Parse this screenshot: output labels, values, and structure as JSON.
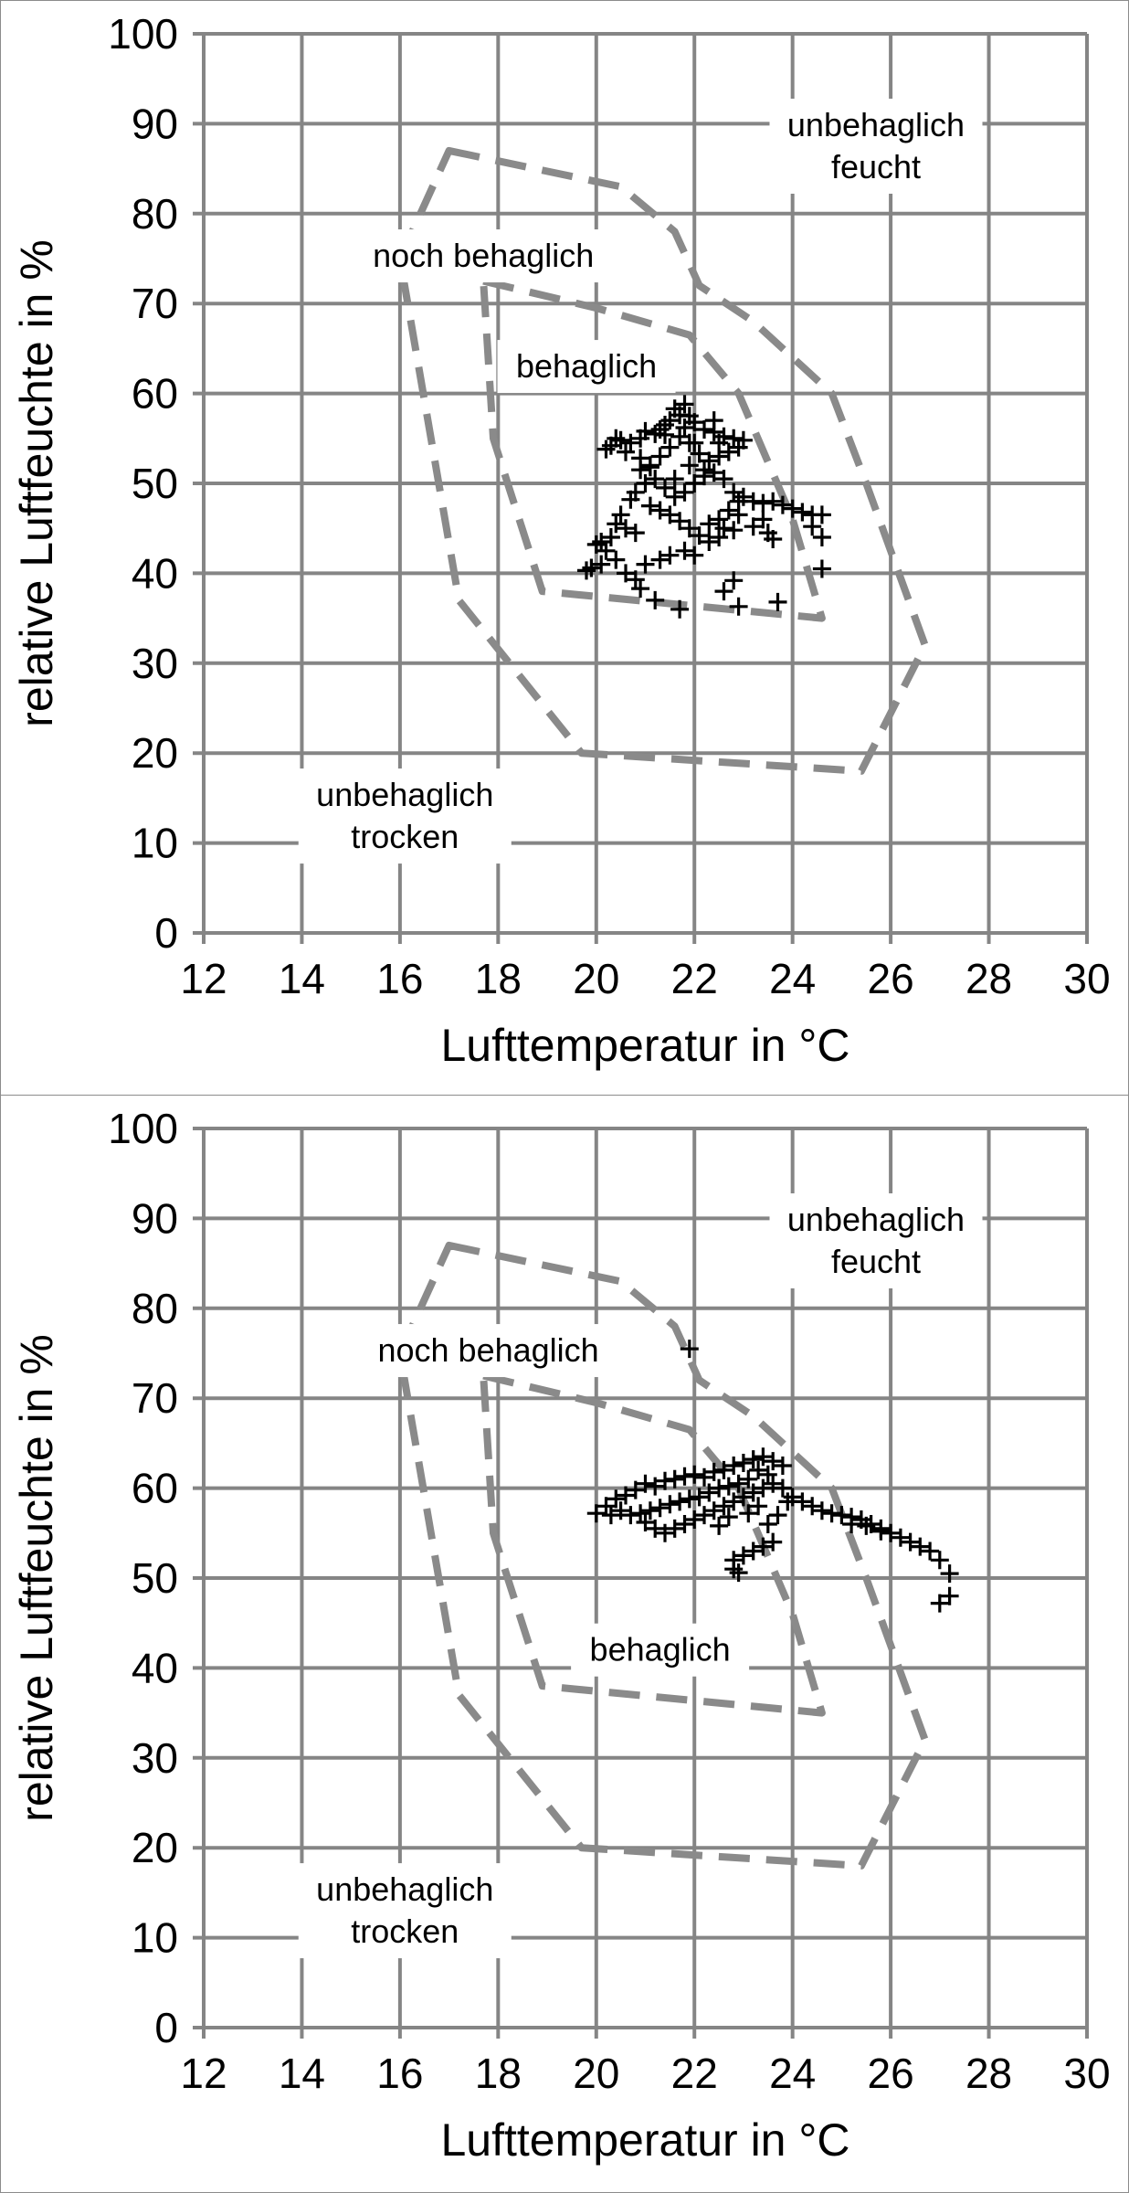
{
  "chart_data": [
    {
      "type": "scatter",
      "xlabel": "Lufttemperatur in °C",
      "ylabel": "relative Luftfeuchte in %",
      "xlim": [
        12,
        30
      ],
      "ylim": [
        0,
        100
      ],
      "xticks": [
        "12",
        "14",
        "16",
        "18",
        "20",
        "22",
        "24",
        "26",
        "28",
        "30"
      ],
      "yticks": [
        "0",
        "10",
        "20",
        "30",
        "40",
        "50",
        "60",
        "70",
        "80",
        "90",
        "100"
      ],
      "grid": true,
      "marker": "plus",
      "zones": [
        {
          "label": "noch behaglich",
          "style": "dashed",
          "color": "#8a8a8a",
          "points": [
            [
              17.0,
              87
            ],
            [
              20.5,
              83
            ],
            [
              21.6,
              78
            ],
            [
              22.1,
              72
            ],
            [
              23.2,
              68
            ],
            [
              24.8,
              60
            ],
            [
              25.5,
              50
            ],
            [
              26.7,
              32
            ],
            [
              25.4,
              18
            ],
            [
              19.7,
              20
            ],
            [
              17.2,
              37
            ],
            [
              16.0,
              75
            ]
          ]
        },
        {
          "label": "behaglich",
          "style": "dashed",
          "color": "#8a8a8a",
          "points": [
            [
              17.7,
              72.5
            ],
            [
              20.0,
              69.5
            ],
            [
              21.9,
              66.5
            ],
            [
              22.9,
              60
            ],
            [
              24.0,
              46
            ],
            [
              24.6,
              35
            ],
            [
              18.9,
              38
            ],
            [
              17.9,
              55
            ],
            [
              17.7,
              72.5
            ]
          ]
        }
      ],
      "annotations": [
        {
          "text": "unbehaglich feucht"
        },
        {
          "text": "noch behaglich"
        },
        {
          "text": "behaglich"
        },
        {
          "text": "unbehaglich trocken"
        }
      ],
      "points": [
        [
          21.6,
          58.3
        ],
        [
          21.7,
          57.6
        ],
        [
          21.8,
          58.8
        ],
        [
          21.5,
          57.0
        ],
        [
          21.4,
          56.5
        ],
        [
          21.9,
          57.5
        ],
        [
          22.0,
          56.8
        ],
        [
          21.3,
          56.0
        ],
        [
          21.2,
          55.5
        ],
        [
          21.0,
          55.8
        ],
        [
          20.9,
          55.0
        ],
        [
          20.7,
          54.5
        ],
        [
          20.5,
          54.8
        ],
        [
          20.3,
          54.2
        ],
        [
          20.2,
          53.8
        ],
        [
          20.4,
          55.0
        ],
        [
          22.2,
          56.0
        ],
        [
          22.4,
          55.7
        ],
        [
          22.6,
          55.2
        ],
        [
          22.8,
          55.0
        ],
        [
          23.0,
          54.8
        ],
        [
          22.9,
          54.0
        ],
        [
          22.7,
          53.5
        ],
        [
          22.5,
          53.0
        ],
        [
          22.3,
          52.5
        ],
        [
          22.1,
          53.3
        ],
        [
          21.9,
          54.5
        ],
        [
          21.7,
          55.2
        ],
        [
          21.5,
          54.0
        ],
        [
          21.3,
          53.0
        ],
        [
          21.1,
          52.0
        ],
        [
          20.9,
          51.5
        ],
        [
          21.2,
          50.5
        ],
        [
          21.4,
          49.5
        ],
        [
          21.6,
          48.5
        ],
        [
          21.8,
          49.0
        ],
        [
          22.0,
          50.0
        ],
        [
          22.2,
          50.8
        ],
        [
          22.4,
          51.2
        ],
        [
          22.6,
          50.5
        ],
        [
          22.8,
          49.0
        ],
        [
          22.9,
          48.0
        ],
        [
          22.7,
          47.0
        ],
        [
          22.5,
          46.0
        ],
        [
          22.3,
          45.5
        ],
        [
          22.6,
          45.0
        ],
        [
          22.8,
          44.8
        ],
        [
          22.9,
          46.5
        ],
        [
          21.0,
          50.0
        ],
        [
          20.8,
          49.0
        ],
        [
          20.7,
          48.2
        ],
        [
          21.1,
          47.5
        ],
        [
          21.3,
          47.0
        ],
        [
          21.5,
          46.5
        ],
        [
          21.7,
          45.8
        ],
        [
          21.9,
          45.0
        ],
        [
          22.1,
          44.2
        ],
        [
          22.3,
          43.5
        ],
        [
          22.5,
          44.0
        ],
        [
          20.5,
          46.5
        ],
        [
          20.4,
          45.5
        ],
        [
          20.6,
          45.0
        ],
        [
          20.8,
          44.5
        ],
        [
          20.3,
          44.0
        ],
        [
          20.1,
          43.5
        ],
        [
          20.0,
          43.2
        ],
        [
          20.2,
          42.5
        ],
        [
          20.4,
          41.5
        ],
        [
          20.1,
          41.0
        ],
        [
          19.9,
          40.6
        ],
        [
          19.8,
          40.3
        ],
        [
          20.6,
          40.0
        ],
        [
          20.8,
          39.3
        ],
        [
          20.9,
          38.3
        ],
        [
          21.2,
          37.0
        ],
        [
          21.7,
          36.0
        ],
        [
          22.6,
          38.0
        ],
        [
          22.8,
          39.2
        ],
        [
          22.9,
          36.3
        ],
        [
          23.7,
          36.8
        ],
        [
          23.0,
          48.5
        ],
        [
          23.2,
          48.0
        ],
        [
          23.4,
          47.8
        ],
        [
          23.6,
          48.0
        ],
        [
          23.8,
          47.6
        ],
        [
          24.0,
          47.2
        ],
        [
          24.2,
          46.8
        ],
        [
          24.4,
          46.5
        ],
        [
          24.6,
          46.5
        ],
        [
          24.6,
          44.0
        ],
        [
          24.6,
          40.5
        ],
        [
          24.4,
          45.2
        ],
        [
          23.4,
          46.0
        ],
        [
          23.2,
          45.2
        ],
        [
          23.5,
          44.5
        ],
        [
          23.6,
          43.8
        ],
        [
          21.0,
          41.0
        ],
        [
          21.3,
          41.5
        ],
        [
          21.5,
          42.0
        ],
        [
          21.8,
          42.5
        ],
        [
          22.0,
          42.0
        ],
        [
          21.9,
          52.0
        ],
        [
          22.0,
          54.5
        ],
        [
          21.8,
          56.2
        ],
        [
          22.5,
          54.5
        ],
        [
          20.6,
          53.5
        ],
        [
          20.9,
          52.8
        ],
        [
          21.1,
          51.8
        ],
        [
          22.2,
          51.5
        ],
        [
          21.6,
          50.5
        ],
        [
          21.4,
          55.4
        ],
        [
          22.4,
          57.0
        ]
      ]
    },
    {
      "type": "scatter",
      "xlabel": "Lufttemperatur in °C",
      "ylabel": "relative Luftfeuchte in %",
      "xlim": [
        12,
        30
      ],
      "ylim": [
        0,
        100
      ],
      "xticks": [
        "12",
        "14",
        "16",
        "18",
        "20",
        "22",
        "24",
        "26",
        "28",
        "30"
      ],
      "yticks": [
        "0",
        "10",
        "20",
        "30",
        "40",
        "50",
        "60",
        "70",
        "80",
        "90",
        "100"
      ],
      "grid": true,
      "marker": "plus",
      "zones": [
        {
          "label": "noch behaglich",
          "style": "dashed",
          "color": "#8a8a8a",
          "points": [
            [
              17.0,
              87
            ],
            [
              20.5,
              83
            ],
            [
              21.6,
              78
            ],
            [
              22.1,
              72
            ],
            [
              23.2,
              68
            ],
            [
              24.8,
              60
            ],
            [
              25.5,
              50
            ],
            [
              26.7,
              32
            ],
            [
              25.4,
              18
            ],
            [
              19.7,
              20
            ],
            [
              17.2,
              37
            ],
            [
              16.0,
              75
            ]
          ]
        },
        {
          "label": "behaglich",
          "style": "dashed",
          "color": "#8a8a8a",
          "points": [
            [
              17.7,
              72.5
            ],
            [
              20.0,
              69.5
            ],
            [
              21.9,
              66.5
            ],
            [
              22.9,
              60
            ],
            [
              24.0,
              46
            ],
            [
              24.6,
              35
            ],
            [
              18.9,
              38
            ],
            [
              17.9,
              55
            ],
            [
              17.7,
              72.5
            ]
          ]
        }
      ],
      "annotations": [
        {
          "text": "unbehaglich feucht"
        },
        {
          "text": "noch behaglich"
        },
        {
          "text": "behaglich"
        },
        {
          "text": "unbehaglich trocken"
        }
      ],
      "points": [
        [
          21.9,
          75.5
        ],
        [
          20.0,
          57.2
        ],
        [
          20.2,
          58.0
        ],
        [
          20.4,
          58.8
        ],
        [
          20.6,
          59.2
        ],
        [
          20.8,
          59.8
        ],
        [
          21.0,
          60.5
        ],
        [
          21.2,
          60.2
        ],
        [
          21.4,
          60.8
        ],
        [
          21.6,
          61.0
        ],
        [
          21.8,
          61.3
        ],
        [
          22.0,
          61.5
        ],
        [
          22.2,
          61.2
        ],
        [
          22.4,
          61.8
        ],
        [
          22.6,
          62.0
        ],
        [
          22.8,
          62.5
        ],
        [
          23.0,
          62.8
        ],
        [
          23.2,
          63.2
        ],
        [
          23.4,
          63.5
        ],
        [
          23.6,
          63.0
        ],
        [
          23.8,
          62.5
        ],
        [
          23.3,
          62.0
        ],
        [
          23.5,
          61.5
        ],
        [
          23.1,
          61.0
        ],
        [
          22.9,
          60.5
        ],
        [
          22.7,
          60.2
        ],
        [
          22.5,
          60.0
        ],
        [
          22.3,
          59.5
        ],
        [
          22.1,
          59.0
        ],
        [
          21.9,
          58.8
        ],
        [
          21.7,
          58.5
        ],
        [
          21.5,
          58.2
        ],
        [
          21.3,
          57.8
        ],
        [
          21.1,
          57.5
        ],
        [
          20.9,
          57.2
        ],
        [
          20.7,
          57.0
        ],
        [
          20.5,
          57.5
        ],
        [
          20.3,
          57.0
        ],
        [
          21.4,
          55.0
        ],
        [
          21.6,
          55.5
        ],
        [
          21.8,
          56.0
        ],
        [
          22.0,
          56.5
        ],
        [
          22.2,
          57.0
        ],
        [
          22.4,
          57.5
        ],
        [
          22.6,
          58.0
        ],
        [
          22.8,
          58.5
        ],
        [
          23.0,
          59.0
        ],
        [
          23.2,
          59.5
        ],
        [
          23.4,
          60.0
        ],
        [
          23.6,
          60.5
        ],
        [
          23.8,
          60.0
        ],
        [
          24.0,
          59.0
        ],
        [
          24.2,
          58.5
        ],
        [
          24.4,
          58.0
        ],
        [
          24.6,
          57.5
        ],
        [
          24.8,
          57.2
        ],
        [
          25.0,
          57.0
        ],
        [
          25.2,
          56.8
        ],
        [
          25.4,
          56.5
        ],
        [
          25.6,
          56.0
        ],
        [
          25.8,
          55.5
        ],
        [
          26.0,
          55.0
        ],
        [
          26.2,
          54.5
        ],
        [
          26.4,
          54.0
        ],
        [
          26.6,
          53.5
        ],
        [
          26.8,
          53.0
        ],
        [
          27.0,
          52.0
        ],
        [
          27.2,
          50.5
        ],
        [
          27.2,
          48.0
        ],
        [
          27.0,
          47.2
        ],
        [
          25.2,
          56.0
        ],
        [
          25.5,
          55.8
        ],
        [
          25.8,
          55.2
        ],
        [
          22.8,
          52.0
        ],
        [
          23.0,
          52.5
        ],
        [
          23.2,
          53.0
        ],
        [
          23.4,
          53.5
        ],
        [
          23.6,
          54.0
        ],
        [
          22.8,
          51.0
        ],
        [
          22.9,
          50.6
        ],
        [
          23.5,
          56.0
        ],
        [
          23.7,
          57.0
        ],
        [
          23.9,
          58.5
        ],
        [
          23.3,
          58.0
        ],
        [
          23.1,
          57.2
        ],
        [
          22.7,
          56.8
        ],
        [
          22.5,
          55.8
        ],
        [
          21.2,
          55.5
        ],
        [
          21.0,
          56.2
        ]
      ]
    }
  ]
}
